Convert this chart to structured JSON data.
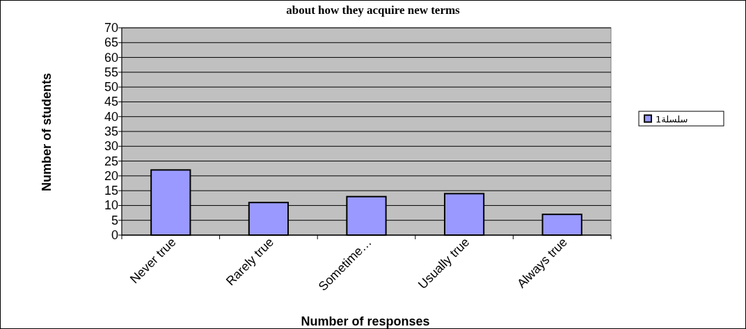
{
  "chart_data": {
    "type": "bar",
    "title": "about how they acquire new terms",
    "xlabel": "Number of responses",
    "ylabel": "Number of students",
    "categories": [
      "Never true",
      "Rarely true",
      "Sometime…",
      "Usually true",
      "Always true"
    ],
    "series": [
      {
        "name": "سلسلة1",
        "color": "#9999ff",
        "values": [
          22,
          11,
          13,
          14,
          7
        ]
      }
    ],
    "ylim": [
      0,
      70
    ],
    "yticks": [
      0,
      5,
      10,
      15,
      20,
      25,
      30,
      35,
      40,
      45,
      50,
      55,
      60,
      65,
      70
    ],
    "grid": "y",
    "legend": "right"
  }
}
